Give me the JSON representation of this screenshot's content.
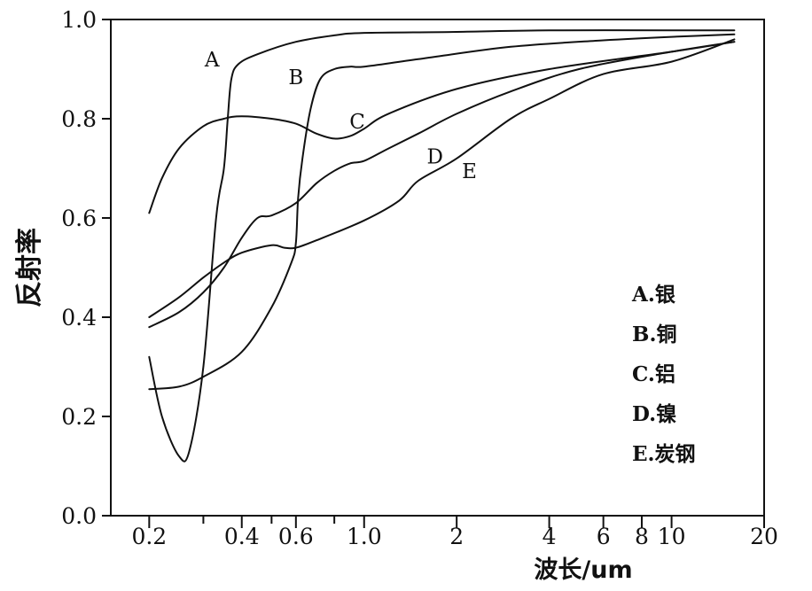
{
  "chart_data": {
    "type": "line",
    "title": "",
    "xlabel": "波长/um",
    "ylabel": "反射率",
    "x_scale": "log",
    "xlim": [
      0.15,
      20
    ],
    "ylim": [
      0.0,
      1.0
    ],
    "x_ticks": [
      {
        "value": 0.2,
        "label": "0.2"
      },
      {
        "value": 0.4,
        "label": "0.4"
      },
      {
        "value": 0.6,
        "label": "0.6"
      },
      {
        "value": 1.0,
        "label": "1.0"
      },
      {
        "value": 2,
        "label": "2"
      },
      {
        "value": 4,
        "label": "4"
      },
      {
        "value": 6,
        "label": "6"
      },
      {
        "value": 8,
        "label": "8"
      },
      {
        "value": 10,
        "label": "10"
      },
      {
        "value": 20,
        "label": "20"
      }
    ],
    "x_minor_ticks": [
      0.3,
      0.5,
      0.8
    ],
    "y_ticks": [
      {
        "value": 0.0,
        "label": "0.0"
      },
      {
        "value": 0.2,
        "label": "0.2"
      },
      {
        "value": 0.4,
        "label": "0.4"
      },
      {
        "value": 0.6,
        "label": "0.6"
      },
      {
        "value": 0.8,
        "label": "0.8"
      },
      {
        "value": 1.0,
        "label": "1.0"
      }
    ],
    "grid": false,
    "legend_placement": "bottom-right",
    "legend": [
      "A.银",
      "B.铜",
      "C.铝",
      "D.镍",
      "E.炭钢"
    ],
    "series": [
      {
        "label": "A",
        "label_at": [
          0.32,
          0.905
        ],
        "points": [
          [
            0.2,
            0.32
          ],
          [
            0.22,
            0.2
          ],
          [
            0.25,
            0.12
          ],
          [
            0.27,
            0.13
          ],
          [
            0.3,
            0.3
          ],
          [
            0.33,
            0.6
          ],
          [
            0.35,
            0.7
          ],
          [
            0.36,
            0.8
          ],
          [
            0.37,
            0.88
          ],
          [
            0.39,
            0.91
          ],
          [
            0.45,
            0.93
          ],
          [
            0.6,
            0.955
          ],
          [
            0.8,
            0.968
          ],
          [
            1.0,
            0.973
          ],
          [
            2.0,
            0.975
          ],
          [
            4.0,
            0.978
          ],
          [
            10.0,
            0.978
          ],
          [
            16.0,
            0.978
          ]
        ]
      },
      {
        "label": "B",
        "label_at": [
          0.6,
          0.87
        ],
        "points": [
          [
            0.2,
            0.255
          ],
          [
            0.25,
            0.26
          ],
          [
            0.3,
            0.28
          ],
          [
            0.4,
            0.33
          ],
          [
            0.5,
            0.42
          ],
          [
            0.58,
            0.51
          ],
          [
            0.6,
            0.55
          ],
          [
            0.61,
            0.64
          ],
          [
            0.63,
            0.72
          ],
          [
            0.67,
            0.82
          ],
          [
            0.72,
            0.88
          ],
          [
            0.8,
            0.9
          ],
          [
            0.9,
            0.905
          ],
          [
            1.0,
            0.905
          ],
          [
            1.5,
            0.92
          ],
          [
            3.0,
            0.945
          ],
          [
            6.0,
            0.958
          ],
          [
            10.0,
            0.965
          ],
          [
            16.0,
            0.97
          ]
        ]
      },
      {
        "label": "C",
        "label_at": [
          0.95,
          0.78
        ],
        "points": [
          [
            0.2,
            0.61
          ],
          [
            0.22,
            0.68
          ],
          [
            0.25,
            0.74
          ],
          [
            0.3,
            0.785
          ],
          [
            0.35,
            0.8
          ],
          [
            0.4,
            0.805
          ],
          [
            0.5,
            0.8
          ],
          [
            0.6,
            0.79
          ],
          [
            0.7,
            0.77
          ],
          [
            0.8,
            0.76
          ],
          [
            0.9,
            0.765
          ],
          [
            1.0,
            0.78
          ],
          [
            1.2,
            0.81
          ],
          [
            2.0,
            0.86
          ],
          [
            4.0,
            0.9
          ],
          [
            10.0,
            0.935
          ],
          [
            16.0,
            0.955
          ]
        ]
      },
      {
        "label": "D",
        "label_at": [
          1.7,
          0.71
        ],
        "points": [
          [
            0.2,
            0.38
          ],
          [
            0.25,
            0.41
          ],
          [
            0.3,
            0.45
          ],
          [
            0.35,
            0.5
          ],
          [
            0.4,
            0.56
          ],
          [
            0.45,
            0.6
          ],
          [
            0.5,
            0.605
          ],
          [
            0.6,
            0.63
          ],
          [
            0.7,
            0.67
          ],
          [
            0.8,
            0.695
          ],
          [
            0.9,
            0.71
          ],
          [
            1.0,
            0.715
          ],
          [
            1.2,
            0.74
          ],
          [
            1.5,
            0.77
          ],
          [
            2.0,
            0.81
          ],
          [
            3.0,
            0.855
          ],
          [
            5.0,
            0.9
          ],
          [
            10.0,
            0.935
          ],
          [
            16.0,
            0.955
          ]
        ]
      },
      {
        "label": "E",
        "label_at": [
          2.2,
          0.68
        ],
        "points": [
          [
            0.2,
            0.4
          ],
          [
            0.25,
            0.44
          ],
          [
            0.3,
            0.48
          ],
          [
            0.35,
            0.51
          ],
          [
            0.4,
            0.53
          ],
          [
            0.5,
            0.545
          ],
          [
            0.55,
            0.54
          ],
          [
            0.6,
            0.54
          ],
          [
            0.7,
            0.555
          ],
          [
            1.0,
            0.595
          ],
          [
            1.3,
            0.635
          ],
          [
            1.5,
            0.675
          ],
          [
            2.0,
            0.72
          ],
          [
            3.0,
            0.8
          ],
          [
            4.0,
            0.84
          ],
          [
            6.0,
            0.89
          ],
          [
            10.0,
            0.915
          ],
          [
            16.0,
            0.96
          ]
        ]
      }
    ]
  }
}
